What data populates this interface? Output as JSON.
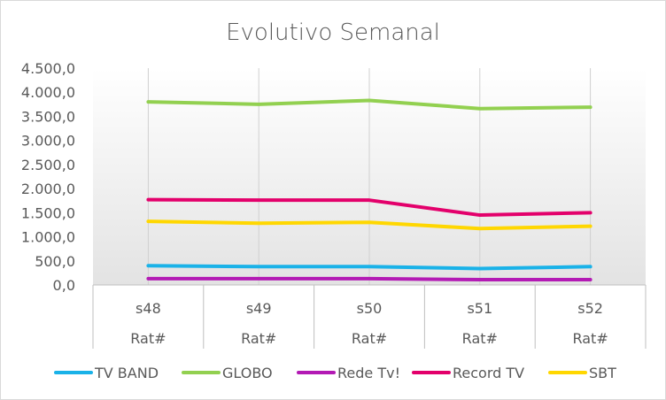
{
  "chart_data": {
    "type": "line",
    "title": "Evolutivo Semanal",
    "categories": [
      "s48",
      "s49",
      "s50",
      "s51",
      "s52"
    ],
    "subcategory": "Rat#",
    "ylim": [
      0,
      4500
    ],
    "yticks": [
      "0,0",
      "500,0",
      "1.000,0",
      "1.500,0",
      "2.000,0",
      "2.500,0",
      "3.000,0",
      "3.500,0",
      "4.000,0",
      "4.500,0"
    ],
    "grid": "vertical",
    "legend": "bottom",
    "series": [
      {
        "name": "TV BAND",
        "color": "#1ab2e8",
        "values": [
          400,
          380,
          380,
          340,
          380
        ]
      },
      {
        "name": "GLOBO",
        "color": "#92d050",
        "values": [
          3800,
          3750,
          3830,
          3660,
          3690
        ]
      },
      {
        "name": "Rede Tv!",
        "color": "#b31ab4",
        "values": [
          130,
          130,
          130,
          110,
          110
        ]
      },
      {
        "name": "Record TV",
        "color": "#e3006b",
        "values": [
          1770,
          1760,
          1760,
          1450,
          1500
        ]
      },
      {
        "name": "SBT",
        "color": "#ffd700",
        "values": [
          1320,
          1280,
          1300,
          1170,
          1220
        ]
      }
    ]
  }
}
